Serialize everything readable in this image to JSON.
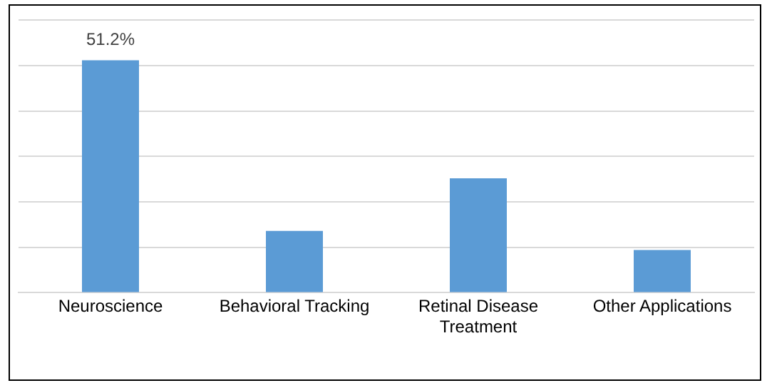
{
  "chart_data": {
    "type": "bar",
    "categories": [
      "Neuroscience",
      "Behavioral Tracking",
      "Retinal Disease Treatment",
      "Other Applications"
    ],
    "values": [
      51.2,
      13.6,
      25.2,
      9.4
    ],
    "value_labels": [
      "51.2%",
      null,
      null,
      null
    ],
    "ylim": [
      0,
      60
    ],
    "yticks": [
      {
        "value": 0,
        "label": null
      },
      {
        "value": 10,
        "label": null
      },
      {
        "value": 20,
        "label": null
      },
      {
        "value": 30,
        "label": null
      },
      {
        "value": 40,
        "label": null
      },
      {
        "value": 50,
        "label": null
      },
      {
        "value": 60,
        "label": null
      }
    ],
    "color": "#5b9bd5",
    "grid": "y",
    "legend": false
  }
}
